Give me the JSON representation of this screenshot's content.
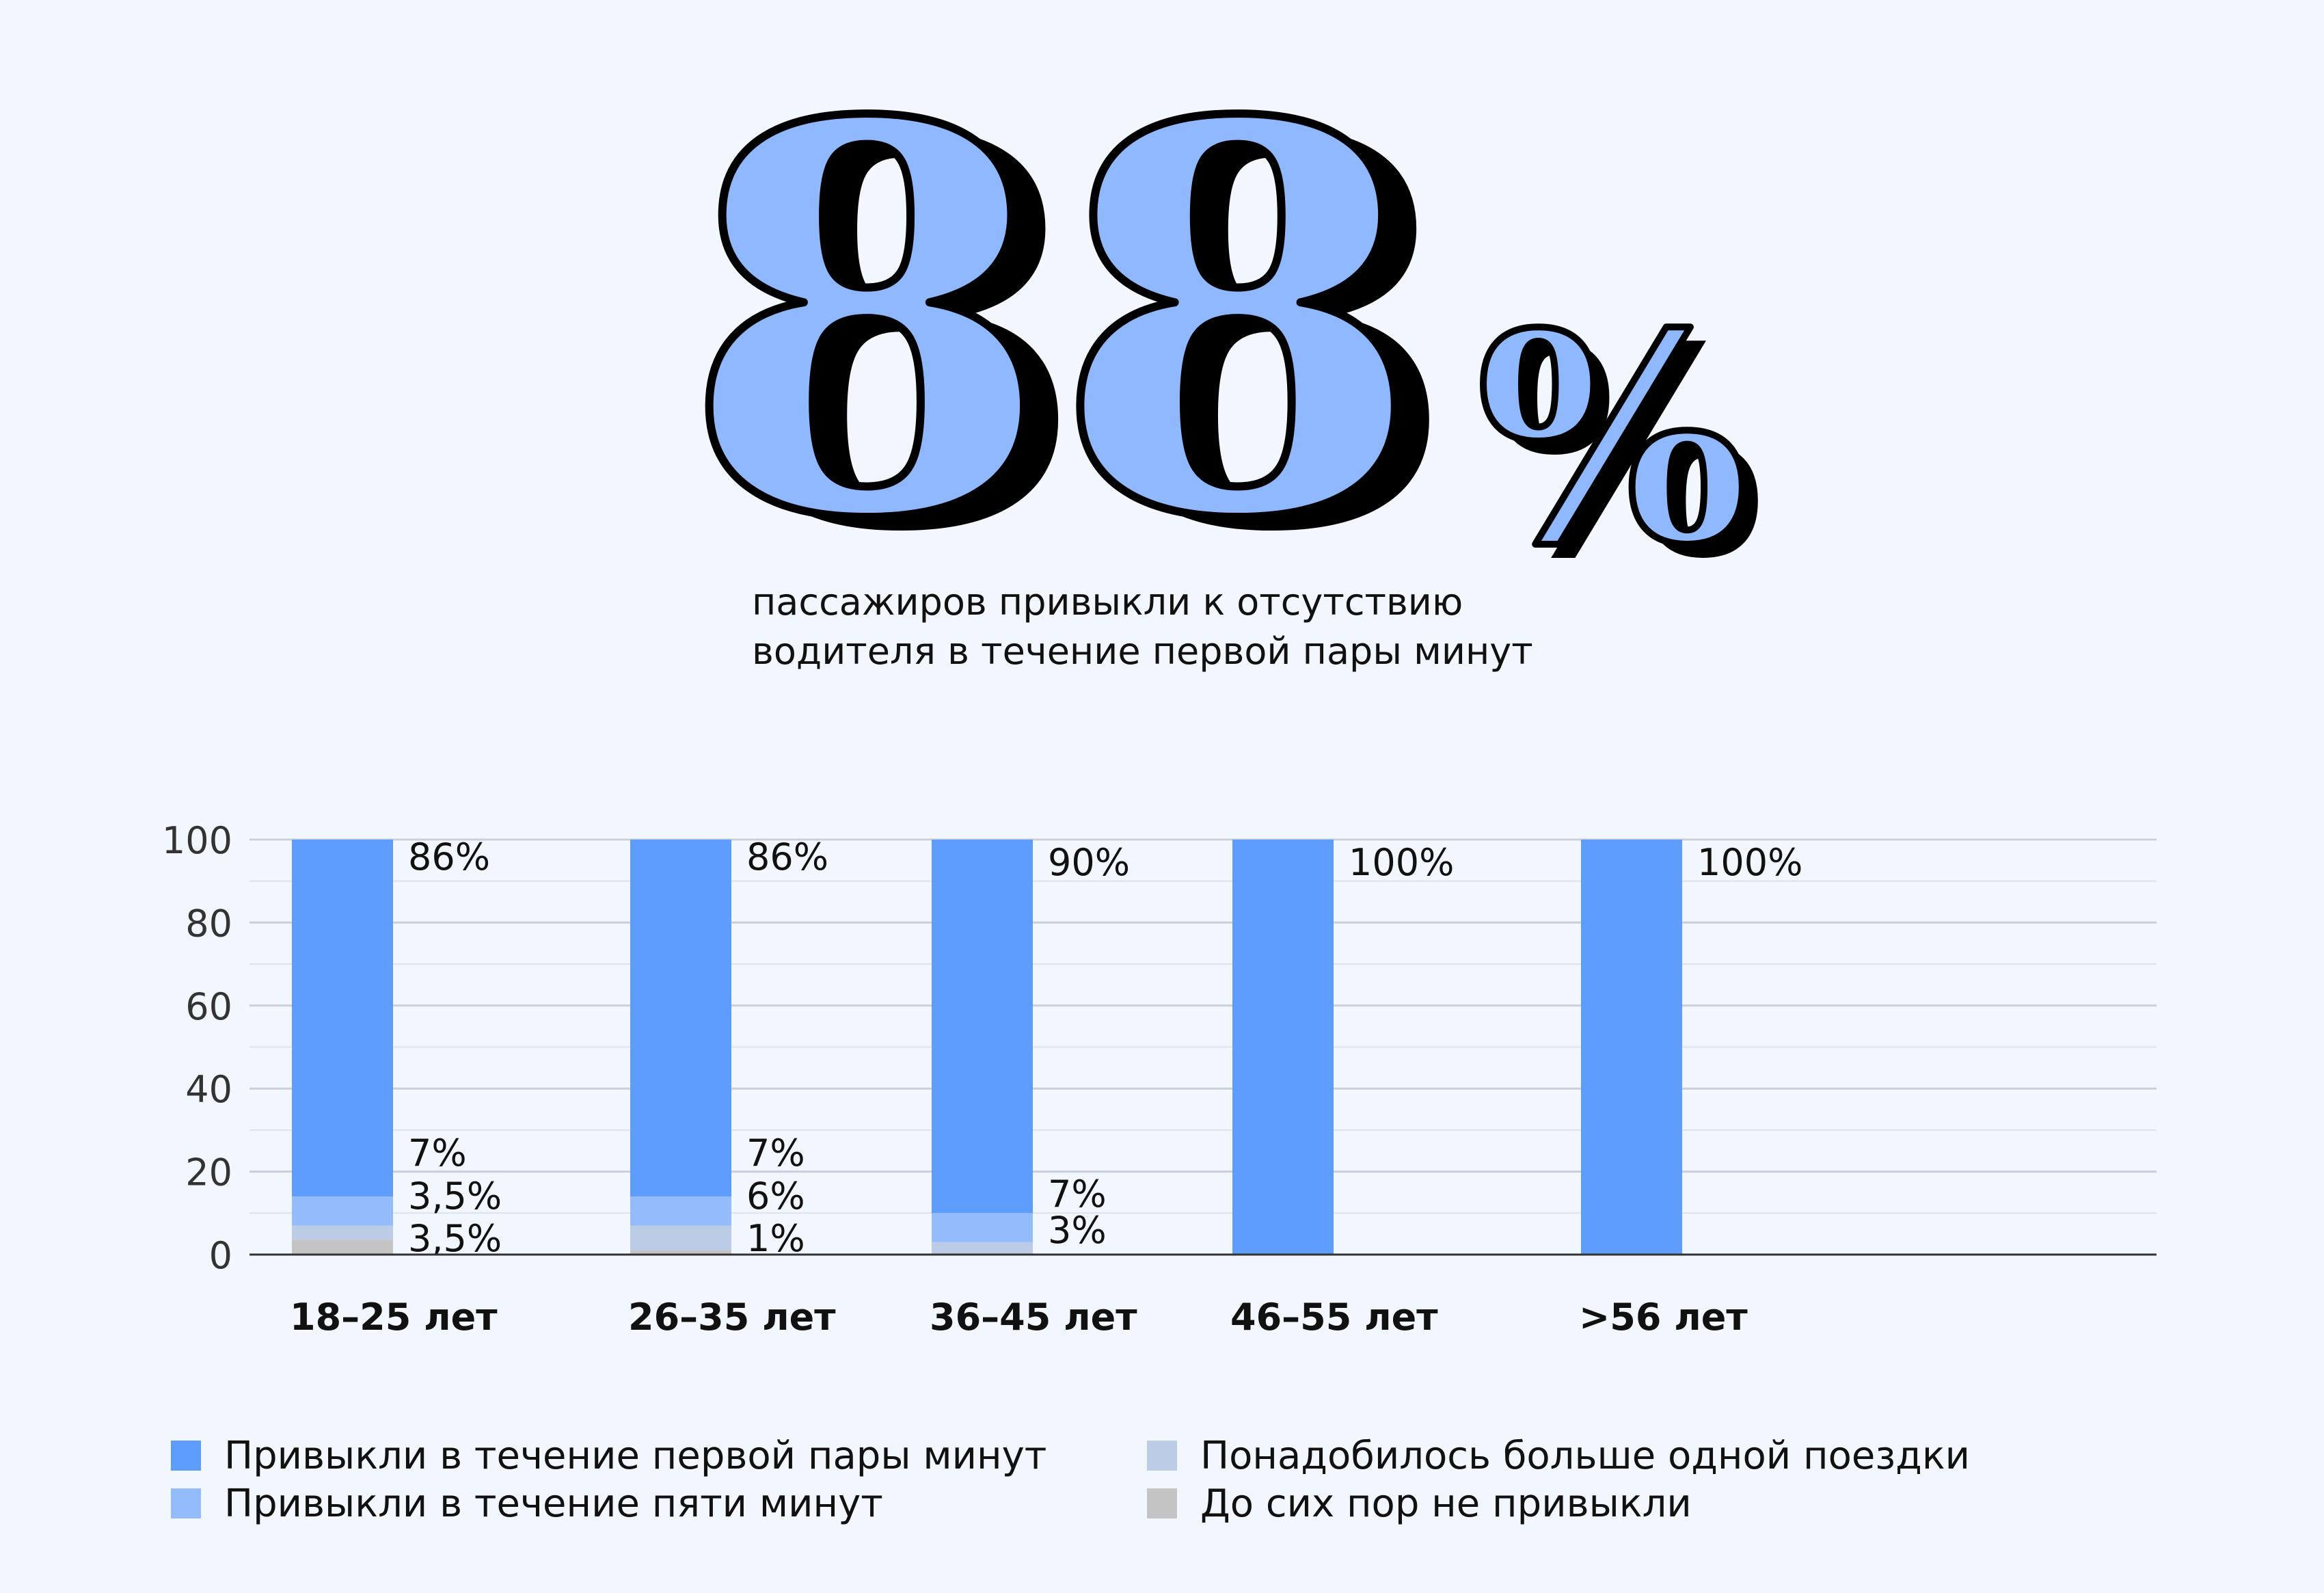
{
  "hero": {
    "number": "88",
    "percent": "%",
    "caption_lines": [
      "пассажиров привыкли к отсутствию",
      "водителя в течение первой пары минут"
    ]
  },
  "colors": {
    "background": "#f2f7fd",
    "hero_fill": "#8fb8ff",
    "hero_shadow": "#000000",
    "series_1": "#5f9dfc",
    "series_2": "#94bbfb",
    "series_3": "#bccce6",
    "series_4": "#c4c4c4",
    "gridline": "#c8d0dc",
    "axis": "#333333"
  },
  "chart_data": {
    "type": "bar",
    "stacked": true,
    "categories": [
      "18–25 лет",
      "26–35 лет",
      "36–45 лет",
      "46–55 лет",
      ">56 лет"
    ],
    "ylim": [
      0,
      100
    ],
    "yticks": [
      "0",
      "20",
      "40",
      "60",
      "80",
      "100"
    ],
    "grid": true,
    "legend_position": "bottom",
    "series": [
      {
        "name": "Привыкли в течение первой пары минут",
        "values": [
          86,
          86,
          90,
          100,
          100
        ],
        "labels": [
          "86%",
          "86%",
          "90%",
          "100%",
          "100%"
        ]
      },
      {
        "name": "Привыкли в течение пяти минут",
        "values": [
          7,
          7,
          7,
          0,
          0
        ],
        "labels": [
          "7%",
          "7%",
          "7%",
          "",
          ""
        ]
      },
      {
        "name": "Понадобилось больше одной поездки",
        "values": [
          3.5,
          6,
          3,
          0,
          0
        ],
        "labels": [
          "3,5%",
          "6%",
          "3%",
          "",
          ""
        ]
      },
      {
        "name": "До сих пор не привыкли",
        "values": [
          3.5,
          1,
          0,
          0,
          0
        ],
        "labels": [
          "3,5%",
          "1%",
          "",
          "",
          ""
        ]
      }
    ]
  },
  "legend": {
    "items": [
      {
        "label": "Привыкли в течение первой пары минут",
        "color": "#5f9dfc"
      },
      {
        "label": "Привыкли в течение пяти минут",
        "color": "#94bbfb"
      },
      {
        "label": "Понадобилось больше одной поездки",
        "color": "#bccce6"
      },
      {
        "label": "До сих пор не привыкли",
        "color": "#c4c4c4"
      }
    ]
  }
}
